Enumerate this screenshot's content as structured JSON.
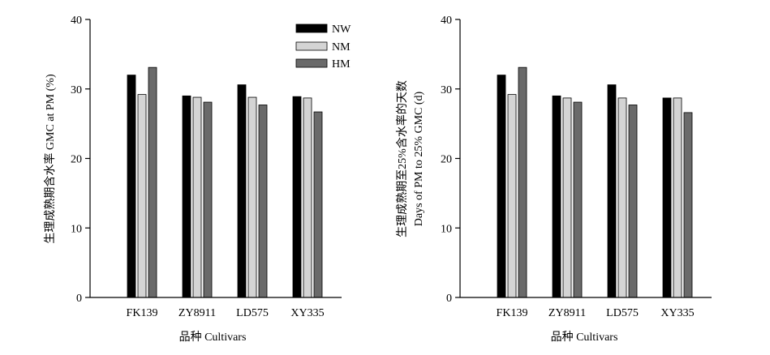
{
  "chart_data": [
    {
      "type": "bar",
      "title": "",
      "xlabel": "品种 Cultivars",
      "ylabel": "生理成熟期含水率 GMC at PM (%)",
      "ylim": [
        0,
        40
      ],
      "yticks": [
        0,
        10,
        20,
        30,
        40
      ],
      "categories": [
        "FK139",
        "ZY8911",
        "LD575",
        "XY335"
      ],
      "series": [
        {
          "name": "NW",
          "color": "#000000",
          "values": [
            32.0,
            29.0,
            30.6,
            28.9
          ]
        },
        {
          "name": "NM",
          "color": "#d4d4d4",
          "values": [
            29.2,
            28.8,
            28.8,
            28.7
          ]
        },
        {
          "name": "HM",
          "color": "#6a6a6a",
          "values": [
            33.1,
            28.1,
            27.7,
            26.7
          ]
        }
      ],
      "legend": "top-right",
      "grid": false
    },
    {
      "type": "bar",
      "title": "",
      "xlabel": "品种 Cultivars",
      "ylabel": "生理成熟期至25%含水率的天数",
      "ylabel2": "Days of  PM to 25% GMC (d)",
      "ylim": [
        0,
        40
      ],
      "yticks": [
        0,
        10,
        20,
        30,
        40
      ],
      "categories": [
        "FK139",
        "ZY8911",
        "LD575",
        "XY335"
      ],
      "series": [
        {
          "color": "#000000",
          "values": [
            32.0,
            29.0,
            30.6,
            28.7
          ]
        },
        {
          "color": "#d4d4d4",
          "values": [
            29.2,
            28.7,
            28.7,
            28.7
          ]
        },
        {
          "color": "#6a6a6a",
          "values": [
            33.1,
            28.1,
            27.7,
            26.6
          ]
        }
      ],
      "legend": "none",
      "grid": false
    }
  ]
}
